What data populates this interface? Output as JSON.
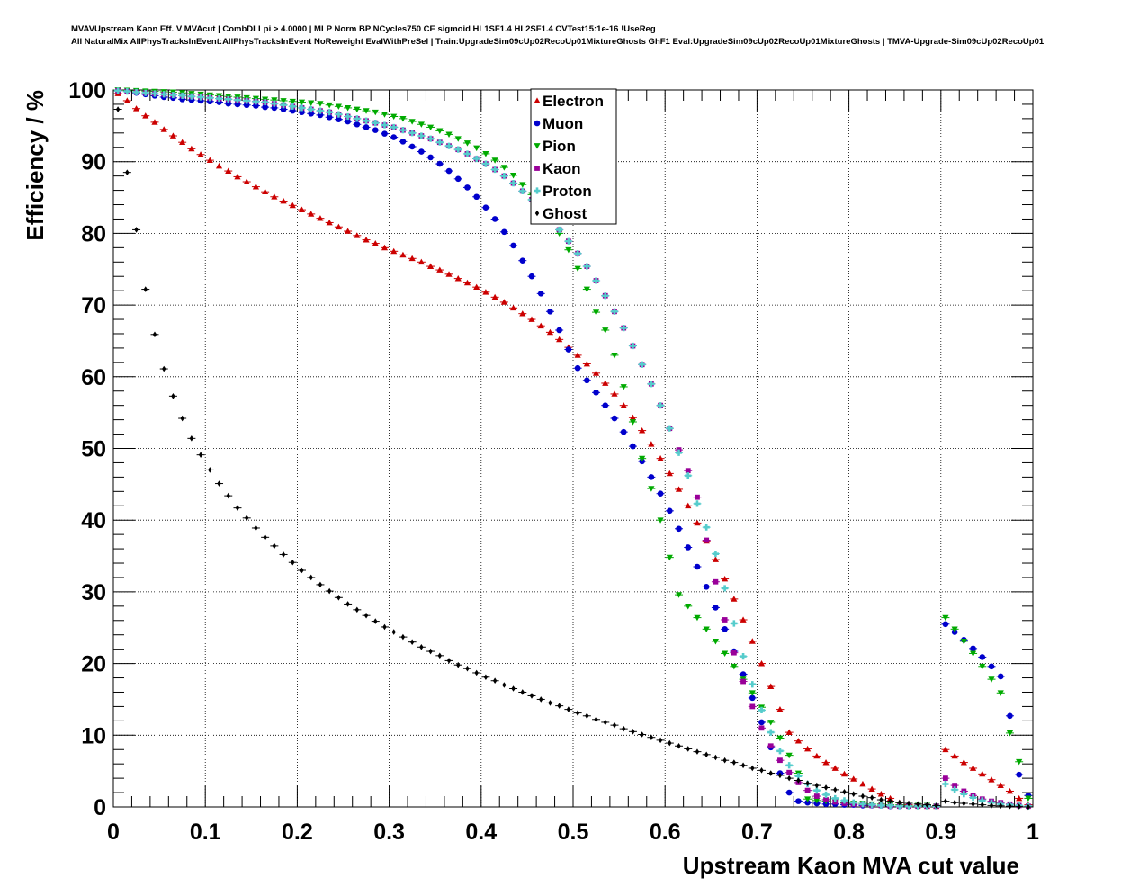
{
  "header": {
    "title_line1": "MVAVUpstream Kaon Eff. V MVAcut | CombDLLpi > 4.0000 | MLP Norm BP NCycles750 CE sigmoid HL1SF1.4 HL2SF1.4 CVTest15:1e-16 !UseReg",
    "title_line2": "All NaturalMix AllPhysTracksInEvent:AllPhysTracksInEvent NoReweight EvalWithPreSel | Train:UpgradeSim09cUp02RecoUp01MixtureGhosts GhF1 Eval:UpgradeSim09cUp02RecoUp01MixtureGhosts | TMVA-Upgrade-Sim09cUp02RecoUp01"
  },
  "chart_data": {
    "type": "scatter",
    "xlabel": "Upstream Kaon MVA cut value",
    "ylabel": "Efficiency / %",
    "xlim": [
      0,
      1
    ],
    "ylim": [
      0,
      100
    ],
    "grid": true,
    "legend_position": "top-center",
    "x_ticks": [
      "0",
      "0.1",
      "0.2",
      "0.3",
      "0.4",
      "0.5",
      "0.6",
      "0.7",
      "0.8",
      "0.9",
      "1"
    ],
    "y_ticks": [
      "0",
      "10",
      "20",
      "30",
      "40",
      "50",
      "60",
      "70",
      "80",
      "90",
      "100"
    ],
    "x": [
      0.005,
      0.015,
      0.025,
      0.035,
      0.045,
      0.055,
      0.065,
      0.075,
      0.085,
      0.095,
      0.105,
      0.115,
      0.125,
      0.135,
      0.145,
      0.155,
      0.165,
      0.175,
      0.185,
      0.195,
      0.205,
      0.215,
      0.225,
      0.235,
      0.245,
      0.255,
      0.265,
      0.275,
      0.285,
      0.295,
      0.305,
      0.315,
      0.325,
      0.335,
      0.345,
      0.355,
      0.365,
      0.375,
      0.385,
      0.395,
      0.405,
      0.415,
      0.425,
      0.435,
      0.445,
      0.455,
      0.465,
      0.475,
      0.485,
      0.495,
      0.505,
      0.515,
      0.525,
      0.535,
      0.545,
      0.555,
      0.565,
      0.575,
      0.585,
      0.595,
      0.605,
      0.615,
      0.625,
      0.635,
      0.645,
      0.655,
      0.665,
      0.675,
      0.685,
      0.695,
      0.705,
      0.715,
      0.725,
      0.735,
      0.745,
      0.755,
      0.765,
      0.775,
      0.785,
      0.795,
      0.805,
      0.815,
      0.825,
      0.835,
      0.845,
      0.855,
      0.865,
      0.875,
      0.885,
      0.895,
      0.905,
      0.915,
      0.925,
      0.935,
      0.945,
      0.955,
      0.965,
      0.975,
      0.985,
      0.995
    ],
    "series": [
      {
        "name": "Electron",
        "color": "#cc0000",
        "marker": "triangle-up",
        "values": [
          99.5,
          98.5,
          97.4,
          96.4,
          95.5,
          94.5,
          93.6,
          92.7,
          91.8,
          91.0,
          90.2,
          89.4,
          88.7,
          87.9,
          87.2,
          86.5,
          85.8,
          85.1,
          84.5,
          83.9,
          83.3,
          82.7,
          82.1,
          81.5,
          80.9,
          80.3,
          79.7,
          79.1,
          78.6,
          78.0,
          77.5,
          77.0,
          76.5,
          76.0,
          75.4,
          74.9,
          74.3,
          73.7,
          73.1,
          72.5,
          71.8,
          71.1,
          70.4,
          69.6,
          68.8,
          68.0,
          67.1,
          66.2,
          65.2,
          64.1,
          63.0,
          61.8,
          60.5,
          59.1,
          57.6,
          56.0,
          54.3,
          52.5,
          50.6,
          48.6,
          46.5,
          44.3,
          42.0,
          39.6,
          37.1,
          34.5,
          31.8,
          29.0,
          26.1,
          23.1,
          20.0,
          16.8,
          13.6,
          10.4,
          9.2,
          8.1,
          7.1,
          6.2,
          5.4,
          4.6,
          3.9,
          3.2,
          2.5,
          1.8,
          1.2,
          0.6,
          0.3,
          0.2,
          0.1,
          0.1,
          8.0,
          7.1,
          6.2,
          5.4,
          4.6,
          3.8,
          3.0,
          2.2,
          1.2,
          0.3
        ]
      },
      {
        "name": "Muon",
        "color": "#0000cc",
        "marker": "circle",
        "values": [
          99.9,
          99.8,
          99.6,
          99.4,
          99.2,
          99.0,
          98.9,
          98.7,
          98.6,
          98.5,
          98.4,
          98.3,
          98.1,
          98.0,
          97.9,
          97.8,
          97.6,
          97.5,
          97.3,
          97.1,
          96.9,
          96.7,
          96.5,
          96.2,
          95.9,
          95.6,
          95.2,
          94.8,
          94.4,
          93.9,
          93.4,
          92.8,
          92.1,
          91.4,
          90.6,
          89.7,
          88.7,
          87.6,
          86.4,
          85.1,
          83.6,
          82.0,
          80.2,
          78.3,
          76.2,
          74.0,
          71.6,
          69.1,
          66.5,
          63.8,
          61.2,
          59.5,
          57.8,
          56.0,
          54.2,
          52.3,
          50.3,
          48.2,
          46.0,
          43.7,
          41.3,
          38.8,
          36.2,
          33.5,
          30.7,
          27.8,
          24.8,
          21.7,
          18.5,
          15.2,
          11.8,
          8.3,
          4.7,
          2.0,
          0.8,
          0.6,
          0.5,
          0.4,
          0.4,
          0.3,
          0.3,
          0.2,
          0.2,
          0.2,
          0.1,
          0.1,
          0.1,
          0.1,
          0.1,
          0.1,
          25.5,
          24.4,
          23.3,
          22.1,
          20.9,
          19.6,
          18.2,
          12.7,
          4.5,
          1.6
        ]
      },
      {
        "name": "Pion",
        "color": "#00aa00",
        "marker": "triangle-down",
        "values": [
          100.0,
          99.95,
          99.9,
          99.85,
          99.8,
          99.75,
          99.7,
          99.6,
          99.5,
          99.4,
          99.3,
          99.2,
          99.1,
          99.0,
          98.9,
          98.8,
          98.7,
          98.6,
          98.5,
          98.4,
          98.3,
          98.2,
          98.1,
          97.9,
          97.7,
          97.5,
          97.3,
          97.1,
          96.9,
          96.6,
          96.3,
          96.0,
          95.6,
          95.2,
          94.8,
          94.3,
          93.8,
          93.2,
          92.6,
          91.9,
          91.1,
          90.2,
          89.2,
          88.1,
          86.8,
          85.4,
          83.8,
          82.0,
          80.0,
          77.7,
          75.1,
          72.2,
          69.0,
          66.5,
          63.0,
          58.6,
          53.7,
          48.6,
          44.4,
          40.0,
          34.8,
          29.6,
          28.0,
          26.4,
          24.8,
          23.1,
          21.4,
          19.6,
          17.8,
          15.9,
          13.9,
          11.8,
          9.6,
          7.2,
          4.7,
          1.1,
          0.9,
          0.8,
          0.7,
          0.6,
          0.5,
          0.5,
          0.4,
          0.4,
          0.3,
          0.3,
          0.2,
          0.2,
          0.2,
          0.1,
          26.4,
          24.8,
          23.1,
          21.4,
          19.6,
          17.8,
          15.9,
          10.3,
          6.3,
          1.2
        ]
      },
      {
        "name": "Kaon",
        "color": "#990099",
        "marker": "square",
        "values": [
          99.9,
          99.8,
          99.7,
          99.6,
          99.5,
          99.4,
          99.3,
          99.2,
          99.1,
          99.0,
          98.9,
          98.8,
          98.7,
          98.6,
          98.5,
          98.4,
          98.3,
          98.1,
          97.9,
          97.7,
          97.5,
          97.3,
          97.1,
          96.9,
          96.6,
          96.3,
          96.0,
          95.7,
          95.4,
          95.1,
          94.8,
          94.4,
          94.0,
          93.6,
          93.2,
          92.7,
          92.2,
          91.7,
          91.1,
          90.4,
          89.7,
          88.9,
          88.0,
          87.0,
          85.9,
          84.7,
          83.4,
          82.0,
          80.5,
          78.9,
          77.2,
          75.4,
          73.4,
          71.3,
          69.1,
          66.8,
          64.3,
          61.7,
          59.0,
          56.0,
          52.8,
          49.8,
          46.9,
          43.2,
          37.2,
          31.4,
          26.1,
          21.5,
          17.5,
          14.0,
          11.0,
          8.5,
          6.5,
          4.8,
          3.4,
          2.3,
          1.5,
          1.0,
          0.7,
          0.5,
          0.4,
          0.3,
          0.2,
          0.2,
          0.1,
          0.1,
          0.1,
          0.1,
          0.1,
          0.1,
          4.0,
          3.0,
          2.2,
          1.6,
          1.1,
          0.8,
          0.6,
          0.4,
          0.2,
          0.1
        ]
      },
      {
        "name": "Proton",
        "color": "#55cccc",
        "marker": "cross",
        "values": [
          99.9,
          99.8,
          99.7,
          99.6,
          99.5,
          99.4,
          99.3,
          99.2,
          99.1,
          99.0,
          98.9,
          98.8,
          98.7,
          98.6,
          98.5,
          98.4,
          98.3,
          98.1,
          97.9,
          97.7,
          97.5,
          97.3,
          97.1,
          96.9,
          96.6,
          96.3,
          96.0,
          95.7,
          95.4,
          95.1,
          94.8,
          94.4,
          94.0,
          93.6,
          93.2,
          92.7,
          92.2,
          91.7,
          91.1,
          90.4,
          89.7,
          88.9,
          88.0,
          87.0,
          85.9,
          84.7,
          83.4,
          82.0,
          80.5,
          78.9,
          77.2,
          75.4,
          73.4,
          71.3,
          69.1,
          66.8,
          64.3,
          61.7,
          59.0,
          56.0,
          52.8,
          49.4,
          46.2,
          42.3,
          39.0,
          35.3,
          30.5,
          25.6,
          21.0,
          17.1,
          13.5,
          10.4,
          7.8,
          5.8,
          4.3,
          3.2,
          2.3,
          1.7,
          1.2,
          0.9,
          0.6,
          0.4,
          0.3,
          0.2,
          0.2,
          0.1,
          0.1,
          0.1,
          0.1,
          0.1,
          3.2,
          2.4,
          1.8,
          1.3,
          0.9,
          0.6,
          0.4,
          0.3,
          0.2,
          0.1
        ]
      },
      {
        "name": "Ghost",
        "color": "#000000",
        "marker": "diamond",
        "values": [
          97.3,
          88.5,
          80.5,
          72.2,
          65.9,
          61.1,
          57.3,
          54.2,
          51.4,
          49.1,
          47.0,
          45.1,
          43.4,
          41.7,
          40.3,
          38.9,
          37.6,
          36.4,
          35.2,
          34.1,
          33.0,
          32.0,
          31.0,
          30.1,
          29.2,
          28.3,
          27.5,
          26.7,
          25.9,
          25.1,
          24.4,
          23.7,
          23.0,
          22.3,
          21.7,
          21.1,
          20.4,
          19.8,
          19.3,
          18.7,
          18.1,
          17.6,
          17.0,
          16.5,
          16.0,
          15.5,
          15.0,
          14.5,
          14.1,
          13.6,
          13.1,
          12.7,
          12.2,
          11.8,
          11.4,
          10.9,
          10.5,
          10.1,
          9.7,
          9.3,
          8.9,
          8.5,
          8.1,
          7.7,
          7.3,
          6.9,
          6.5,
          6.2,
          5.8,
          5.4,
          5.1,
          4.7,
          4.4,
          4.0,
          3.7,
          3.3,
          3.0,
          2.7,
          2.4,
          2.1,
          1.8,
          1.5,
          1.3,
          1.0,
          0.8,
          0.6,
          0.5,
          0.4,
          0.3,
          0.2,
          0.8,
          0.6,
          0.5,
          0.4,
          0.3,
          0.2,
          0.15,
          0.1,
          0.05,
          0.0
        ]
      }
    ]
  }
}
